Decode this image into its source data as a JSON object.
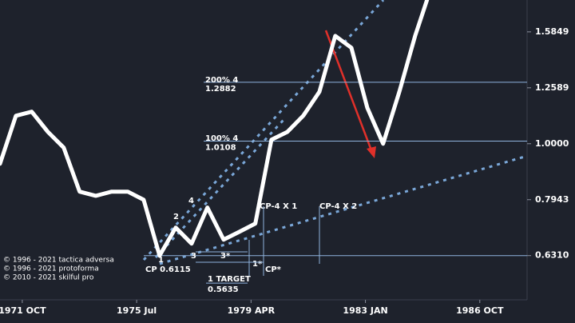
{
  "chart_data": {
    "type": "line",
    "x": [
      1971.02,
      1971.54,
      1972.06,
      1972.59,
      1973.11,
      1973.63,
      1974.16,
      1974.68,
      1975.21,
      1975.73,
      1976.25,
      1976.78,
      1977.3,
      1977.82,
      1978.35,
      1978.87,
      1979.39,
      1979.92,
      1980.44,
      1980.96,
      1981.49,
      1982.01,
      1982.54,
      1983.06,
      1983.58,
      1984.11,
      1984.63,
      1985.02
    ],
    "series": [
      {
        "color": "#ffffff",
        "values": [
          0.921,
          1.122,
          1.141,
          1.05,
          0.984,
          0.821,
          0.807,
          0.821,
          0.821,
          0.794,
          0.631,
          0.708,
          0.663,
          0.769,
          0.674,
          0.696,
          0.72,
          1.017,
          1.05,
          1.122,
          1.238,
          1.559,
          1.484,
          1.16,
          1.0,
          1.238,
          1.559,
          1.807
        ]
      }
    ],
    "xlim": [
      1971.02,
      1988.3
    ],
    "xticks": [
      {
        "value": 1971.75,
        "label": "1971 OCT"
      },
      {
        "value": 1975.5,
        "label": "1975 Jul"
      },
      {
        "value": 1979.25,
        "label": "1979 APR"
      },
      {
        "value": 1983.0,
        "label": "1983 JAN"
      },
      {
        "value": 1986.75,
        "label": "1986 OCT"
      }
    ],
    "ylim": [
      0.526,
      1.807
    ],
    "log_scale": true,
    "yticks": [
      {
        "value": 0.631,
        "label": "0.6310"
      },
      {
        "value": 0.7943,
        "label": "0.7943"
      },
      {
        "value": 1.0,
        "label": "1.0000"
      },
      {
        "value": 1.2589,
        "label": "1.2589"
      },
      {
        "value": 1.5849,
        "label": "1.5849"
      }
    ],
    "levels": [
      1.2882,
      1.0108
    ],
    "target": 0.5635,
    "annotations": [
      "200%  4",
      "100%  4",
      "CP-4 X 1",
      "CP-4 X 2",
      "CP 0.6115",
      "1 TARGET",
      "CP*",
      "1*",
      "3*",
      "3",
      "2",
      "4",
      "1"
    ],
    "notes": [
      "© 1996 - 2021 tactica adversa",
      "© 1996 - 2021 protoforma",
      "© 2010 - 2021 skilful pro"
    ]
  }
}
